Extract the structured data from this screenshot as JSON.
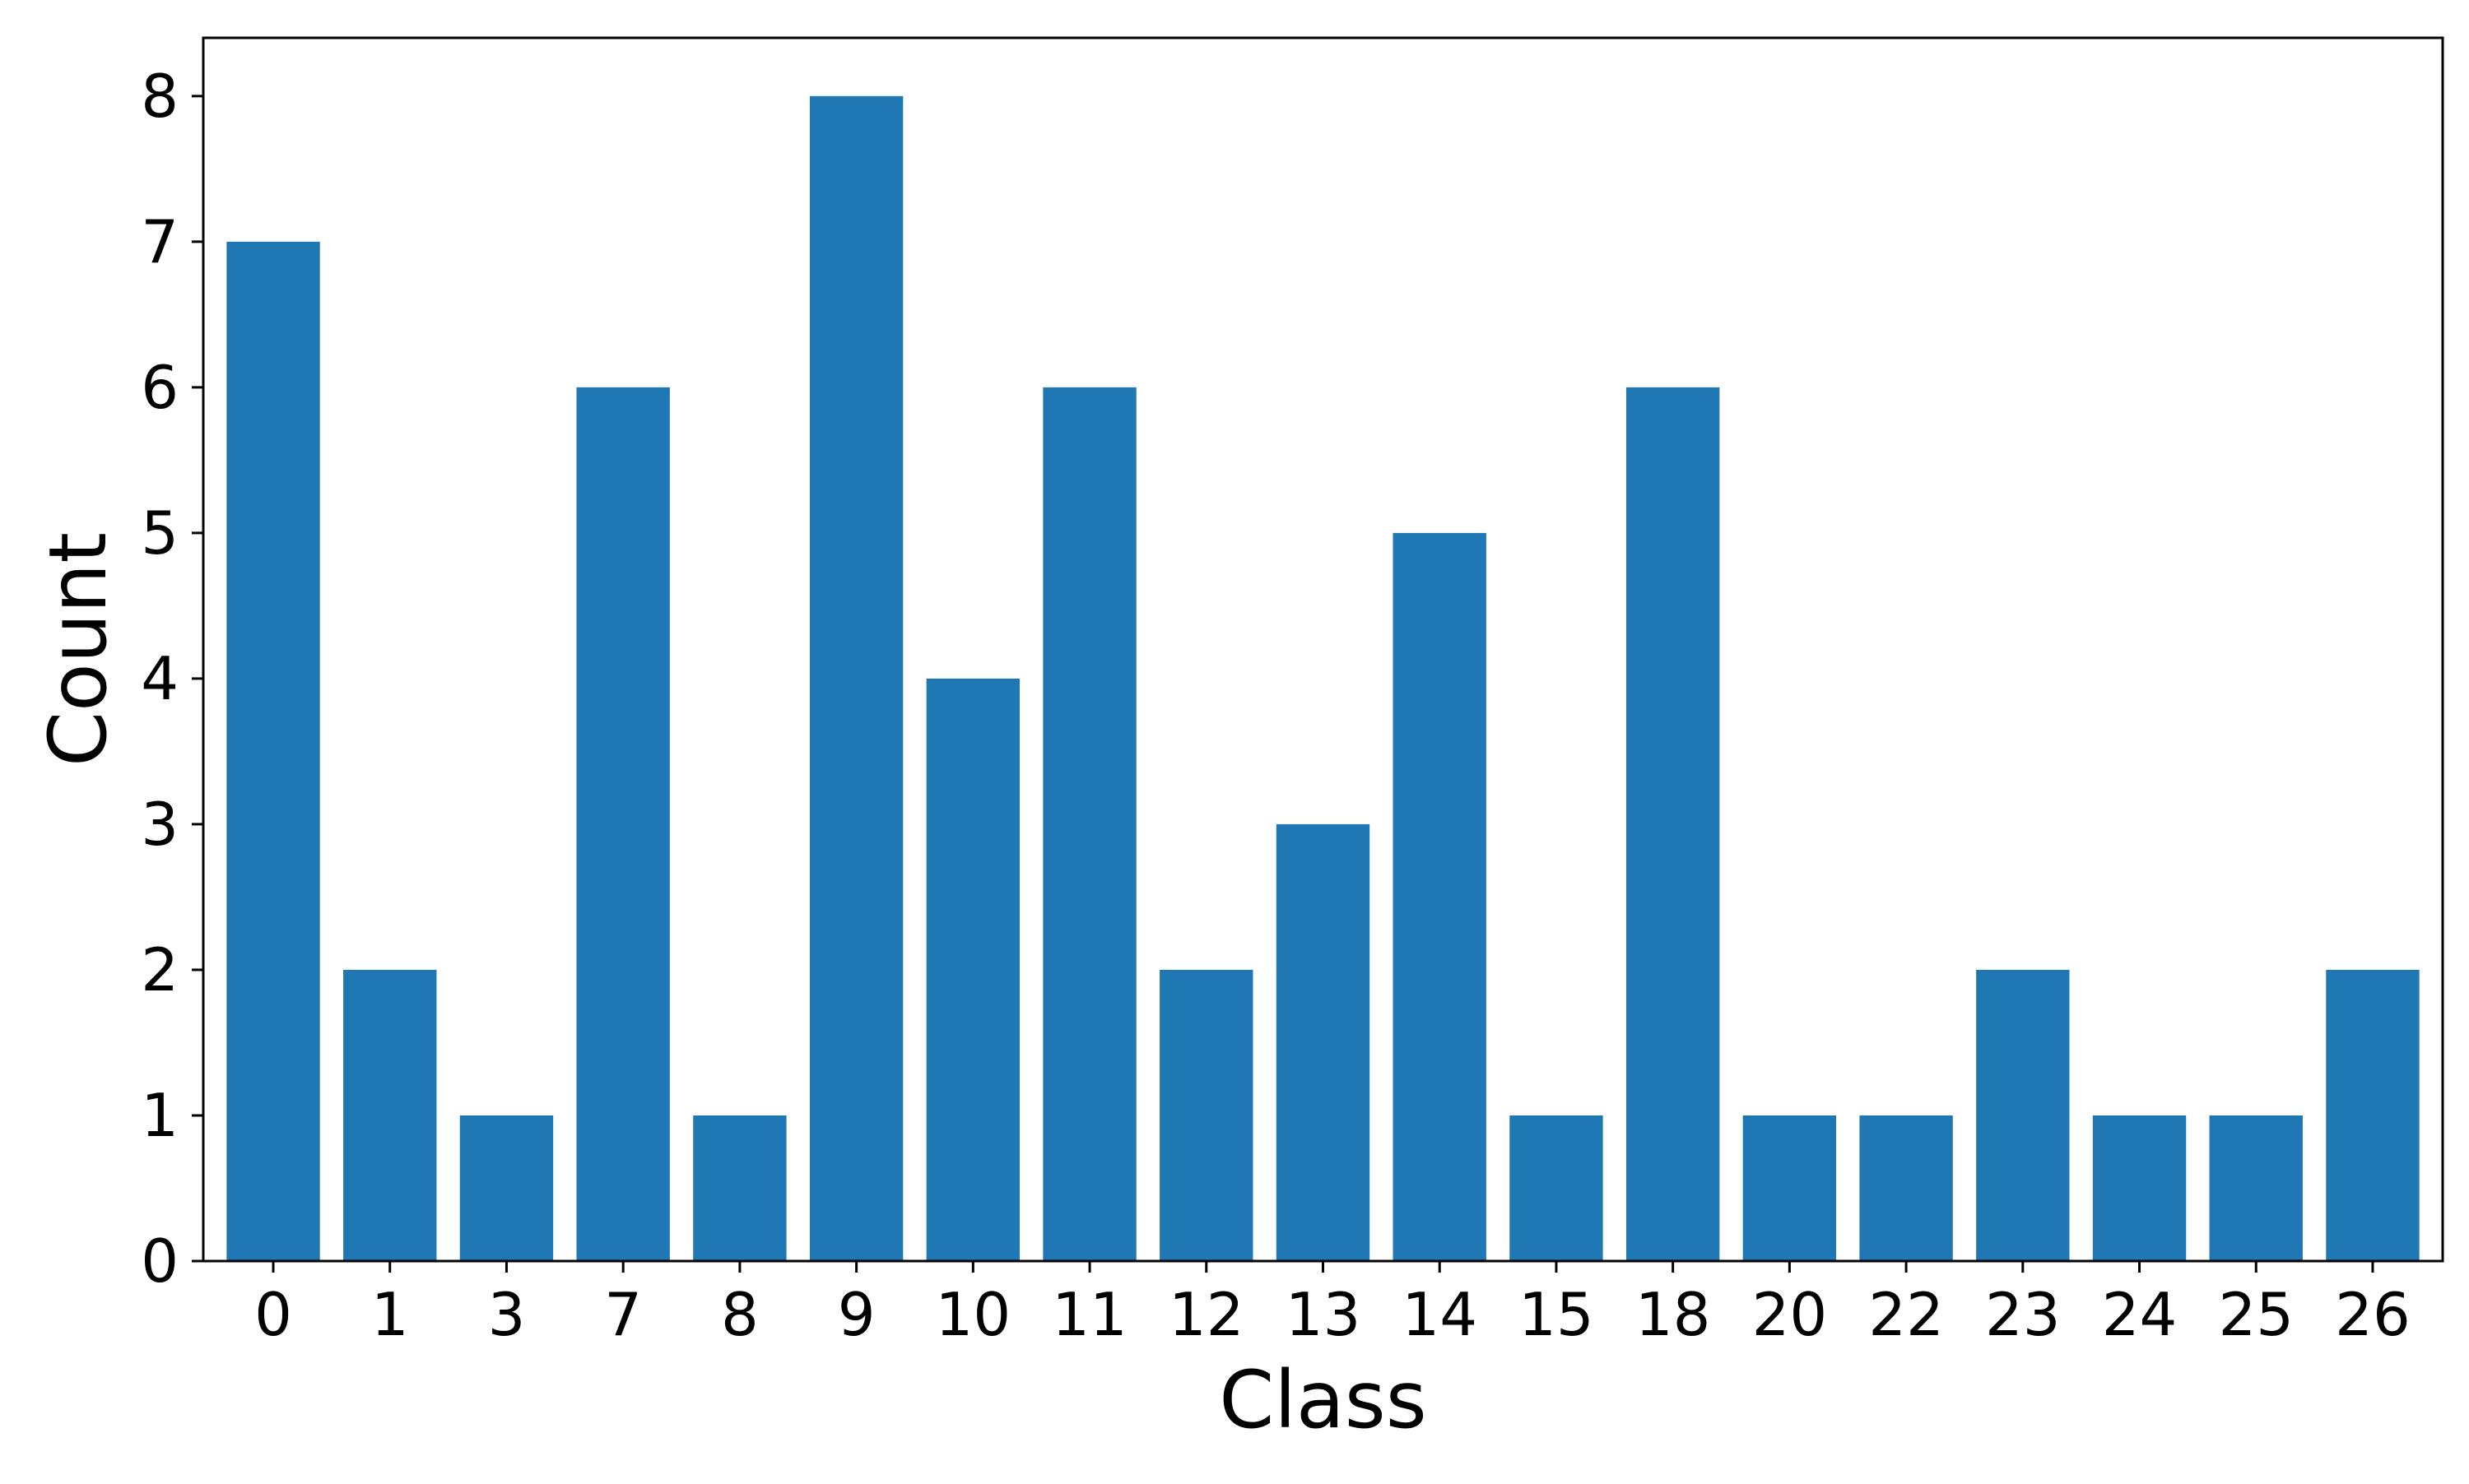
{
  "chart_data": {
    "type": "bar",
    "title": "",
    "xlabel": "Class",
    "ylabel": "Count",
    "categories": [
      "0",
      "1",
      "3",
      "7",
      "8",
      "9",
      "10",
      "11",
      "12",
      "13",
      "14",
      "15",
      "18",
      "20",
      "22",
      "23",
      "24",
      "25",
      "26"
    ],
    "values": [
      7,
      2,
      1,
      6,
      1,
      8,
      4,
      6,
      2,
      3,
      5,
      1,
      6,
      1,
      1,
      2,
      1,
      1,
      2
    ],
    "ylim": [
      0,
      8.4
    ],
    "yticks": [
      "0",
      "1",
      "2",
      "3",
      "4",
      "5",
      "6",
      "7",
      "8"
    ],
    "grid": false,
    "bar_color": "#1f77b4"
  }
}
